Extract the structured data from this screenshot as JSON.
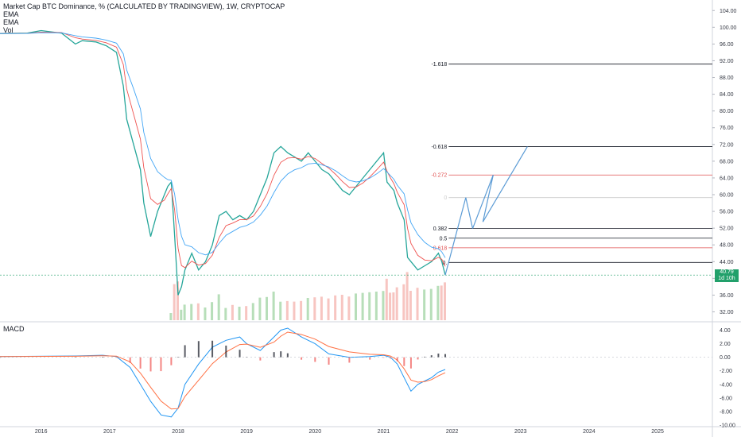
{
  "chart_data": {
    "type": "line",
    "title": "Market Cap BTC Dominance, % (CALCULATED BY TRADINGVIEW), 1W, CRYPTOCAP",
    "indicators": [
      "EMA",
      "EMA",
      "Vol"
    ],
    "price_axis": {
      "ylim": [
        30,
        105
      ],
      "ticks": [
        "104.00",
        "100.00",
        "96.00",
        "92.00",
        "88.00",
        "84.00",
        "80.00",
        "76.00",
        "72.00",
        "68.00",
        "64.00",
        "60.00",
        "56.00",
        "52.00",
        "48.00",
        "44.00",
        "40.00",
        "36.00",
        "32.00"
      ]
    },
    "time_axis": {
      "xlim": [
        2015.4,
        2025.8
      ],
      "labels": [
        "2016",
        "2017",
        "2018",
        "2019",
        "2020",
        "2021",
        "2022",
        "2023",
        "2024",
        "2025"
      ]
    },
    "last_price": {
      "value": 40.79,
      "label": "40.79",
      "countdown": "1d 10h",
      "color": "#22a06b"
    },
    "series": [
      {
        "kind": "price",
        "x": [
          2015.4,
          2015.8,
          2016.0,
          2016.3,
          2016.5,
          2016.6,
          2016.8,
          2016.95,
          2017.1,
          2017.2,
          2017.25,
          2017.35,
          2017.45,
          2017.5,
          2017.6,
          2017.7,
          2017.8,
          2017.85,
          2017.9,
          2017.95,
          2018.0,
          2018.05,
          2018.1,
          2018.2,
          2018.3,
          2018.4,
          2018.5,
          2018.6,
          2018.7,
          2018.8,
          2018.9,
          2019.0,
          2019.1,
          2019.2,
          2019.3,
          2019.4,
          2019.5,
          2019.6,
          2019.7,
          2019.8,
          2019.9,
          2020.0,
          2020.1,
          2020.2,
          2020.3,
          2020.4,
          2020.5,
          2020.6,
          2020.7,
          2020.8,
          2020.9,
          2021.0,
          2021.05,
          2021.1,
          2021.15,
          2021.2,
          2021.3,
          2021.35,
          2021.4,
          2021.5,
          2021.6,
          2021.7,
          2021.8,
          2021.85,
          2021.9
        ],
        "values": [
          98.5,
          98.6,
          99.2,
          98.6,
          96.0,
          96.8,
          96.5,
          95.6,
          94.0,
          86.0,
          78.0,
          72.0,
          66.0,
          58.0,
          50.0,
          56.0,
          60.0,
          62.0,
          63.0,
          50.0,
          36.0,
          38.0,
          42.0,
          46.0,
          42.0,
          44.0,
          48.0,
          55.0,
          56.0,
          54.0,
          55.0,
          54.0,
          56.0,
          60.0,
          64.0,
          70.0,
          71.5,
          70.0,
          69.0,
          68.0,
          70.0,
          68.0,
          66.0,
          65.0,
          63.0,
          61.0,
          60.0,
          62.0,
          64.0,
          66.0,
          68.0,
          70.0,
          63.0,
          62.0,
          61.0,
          58.0,
          54.0,
          45.0,
          44.0,
          42.0,
          43.0,
          44.0,
          46.0,
          44.0,
          40.79
        ]
      },
      {
        "kind": "macd",
        "x": [
          2015.4,
          2016.5,
          2016.9,
          2017.1,
          2017.3,
          2017.45,
          2017.6,
          2017.75,
          2017.9,
          2018.0,
          2018.1,
          2018.3,
          2018.5,
          2018.7,
          2018.9,
          2019.0,
          2019.2,
          2019.4,
          2019.5,
          2019.6,
          2019.8,
          2020.0,
          2020.2,
          2020.5,
          2020.8,
          2021.0,
          2021.1,
          2021.2,
          2021.3,
          2021.4,
          2021.5,
          2021.6,
          2021.7,
          2021.8,
          2021.9
        ],
        "values": [
          0.1,
          0.2,
          0.3,
          0.1,
          -1.5,
          -4.0,
          -6.5,
          -8.5,
          -8.8,
          -7.5,
          -4.0,
          -1.0,
          1.5,
          2.5,
          3.0,
          2.0,
          1.0,
          3.0,
          4.0,
          4.3,
          3.0,
          2.0,
          0.5,
          0.0,
          0.1,
          0.3,
          0.0,
          -1.0,
          -3.0,
          -5.0,
          -4.0,
          -3.5,
          -3.0,
          -2.2,
          -1.8
        ]
      }
    ],
    "macd_panel": {
      "label": "MACD",
      "ylim": [
        -10,
        5
      ],
      "ticks": [
        "4.00",
        "2.00",
        "0.00",
        "-2.00",
        "-4.00",
        "-6.00",
        "-8.00",
        "-10.00"
      ]
    },
    "fibonacci": {
      "levels": [
        {
          "label": "-1.618",
          "value": 91.2,
          "color": "#131722"
        },
        {
          "label": "-0.618",
          "value": 71.5,
          "color": "#131722"
        },
        {
          "label": "-0.272",
          "value": 64.7,
          "color": "#e05252"
        },
        {
          "label": "0",
          "value": 59.3,
          "color": "#cccccc"
        },
        {
          "label": "0.382",
          "value": 51.9,
          "color": "#131722"
        },
        {
          "label": "0.5",
          "value": 49.6,
          "color": "#131722"
        },
        {
          "label": "0.618",
          "value": 47.3,
          "color": "#e05252"
        },
        {
          "label": "0.",
          "value": 43.8,
          "color": "#131722"
        }
      ]
    },
    "projection_color": "#5b9bd5"
  }
}
